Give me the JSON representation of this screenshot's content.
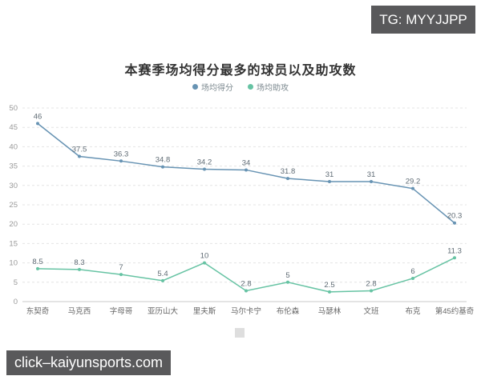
{
  "badges": {
    "top_right": "TG: MYYJJPP",
    "bottom_left": "click–kaiyunsports.com"
  },
  "chart_data": {
    "type": "line",
    "title": "本赛季场均得分最多的球员以及助攻数",
    "categories": [
      "东契奇",
      "马克西",
      "字母哥",
      "亚历山大",
      "里夫斯",
      "马尔卡宁",
      "布伦森",
      "马瑟林",
      "文班",
      "布克",
      "第45约基奇"
    ],
    "series": [
      {
        "name": "场均得分",
        "color": "#6793b3",
        "values": [
          46,
          37.5,
          36.3,
          34.8,
          34.2,
          34,
          31.8,
          31,
          31,
          29.2,
          20.3
        ]
      },
      {
        "name": "场均助攻",
        "color": "#66c3a3",
        "values": [
          8.5,
          8.3,
          7,
          5.4,
          10,
          2.8,
          5,
          2.5,
          2.8,
          6,
          11.3
        ]
      }
    ],
    "ylim": [
      0,
      50
    ],
    "ytick_step": 5,
    "grid": "dashed",
    "legend_position": "top",
    "value_labels": "shown"
  },
  "colors": {
    "badge_bg": "#59595b",
    "grid_line": "#e4e4e4",
    "axis_line": "#c9c9c9",
    "title_text": "#333333"
  }
}
